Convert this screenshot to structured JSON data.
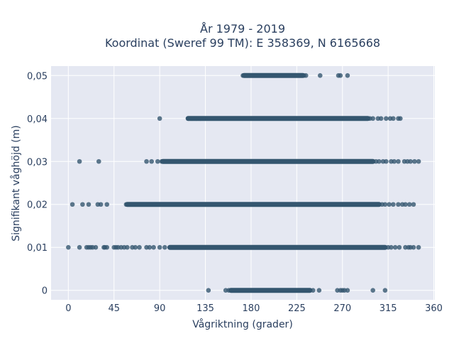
{
  "chart_data": {
    "type": "scatter",
    "title": [
      "År 1979 - 2019",
      "Koordinat (Sweref 99 TM): E 358369, N 6165668"
    ],
    "xlabel": "Vågriktning (grader)",
    "ylabel": "Signifikant våghöjd (m)",
    "xlim": [
      -17,
      361
    ],
    "ylim": [
      -0.0022,
      0.0522
    ],
    "xticks": [
      0,
      45,
      90,
      135,
      180,
      225,
      270,
      315,
      360
    ],
    "xtick_labels": [
      "0",
      "45",
      "90",
      "135",
      "180",
      "225",
      "270",
      "315",
      "360"
    ],
    "yticks": [
      0,
      0.01,
      0.02,
      0.03,
      0.04,
      0.05
    ],
    "ytick_labels": [
      "0",
      "0,01",
      "0,02",
      "0,03",
      "0,04",
      "0,05"
    ],
    "grid": true,
    "marker_color": "#34566f",
    "background_color": "#e5e8f2",
    "series": [
      {
        "values": [
          {
            "y": 0.05,
            "dense_range": [
              173,
              231
            ],
            "points": [
              172,
              174,
              176,
              232,
              234,
              248,
              266,
              268,
              275
            ]
          },
          {
            "y": 0.04,
            "dense_range": [
              118,
              295
            ],
            "points": [
              90,
              118,
              122,
              126,
              130,
              297,
              300,
              305,
              308,
              313,
              317,
              320,
              325,
              327
            ]
          },
          {
            "y": 0.03,
            "dense_range": [
              93,
              300
            ],
            "points": [
              11,
              30,
              77,
              82,
              88,
              92,
              303,
              306,
              310,
              313,
              318,
              321,
              325,
              331,
              334,
              337,
              341,
              345
            ]
          },
          {
            "y": 0.02,
            "dense_range": [
              58,
              306
            ],
            "points": [
              4,
              14,
              20,
              29,
              32,
              38,
              57,
              60,
              63,
              67,
              70,
              75,
              80,
              85,
              309,
              312,
              316,
              320,
              325,
              329,
              332,
              336,
              340
            ]
          },
          {
            "y": 0.01,
            "dense_range": [
              100,
              312
            ],
            "points": [
              0,
              11,
              18,
              20,
              22,
              24,
              27,
              35,
              36,
              38,
              45,
              47,
              49,
              52,
              55,
              58,
              63,
              66,
              70,
              77,
              80,
              84,
              90,
              95,
              315,
              318,
              322,
              326,
              332,
              335,
              337,
              340,
              345
            ]
          },
          {
            "y": 0,
            "dense_range": [
              160,
              238
            ],
            "points": [
              138,
              155,
              158,
              241,
              247,
              265,
              268,
              270,
              272,
              275,
              300,
              312
            ]
          }
        ]
      }
    ]
  }
}
